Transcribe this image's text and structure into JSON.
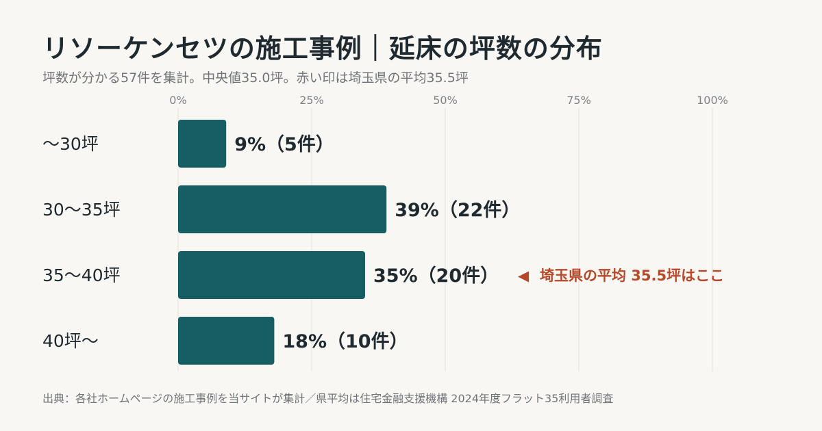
{
  "header": {
    "title": "リソーケンセツの施工事例｜延床の坪数の分布",
    "subtitle": "坪数が分かる57件を集計。中央値35.0坪。赤い印は埼玉県の平均35.5坪"
  },
  "footer": {
    "source": "出典：各社ホームページの施工事例を当サイトが集計／県平均は住宅金融支援機構 2024年度フラット35利用者調査"
  },
  "chart_data": {
    "type": "bar",
    "orientation": "horizontal",
    "categories": [
      "〜30坪",
      "30〜35坪",
      "35〜40坪",
      "40坪〜"
    ],
    "values": [
      9,
      39,
      35,
      18
    ],
    "counts": [
      5,
      22,
      20,
      10
    ],
    "data_labels": [
      "9%（5件）",
      "39%（22件）",
      "35%（20件）",
      "18%（10件）"
    ],
    "xlim": [
      0,
      100
    ],
    "x_ticks": [
      0,
      25,
      50,
      75,
      100
    ],
    "x_tick_labels": [
      "0%",
      "25%",
      "50%",
      "75%",
      "100%"
    ],
    "grid": true,
    "bar_color": "#165e63",
    "annotation": {
      "category_index": 2,
      "marker": "◀",
      "text": "埼玉県の平均 35.5坪はここ",
      "color": "#b5492a"
    }
  }
}
